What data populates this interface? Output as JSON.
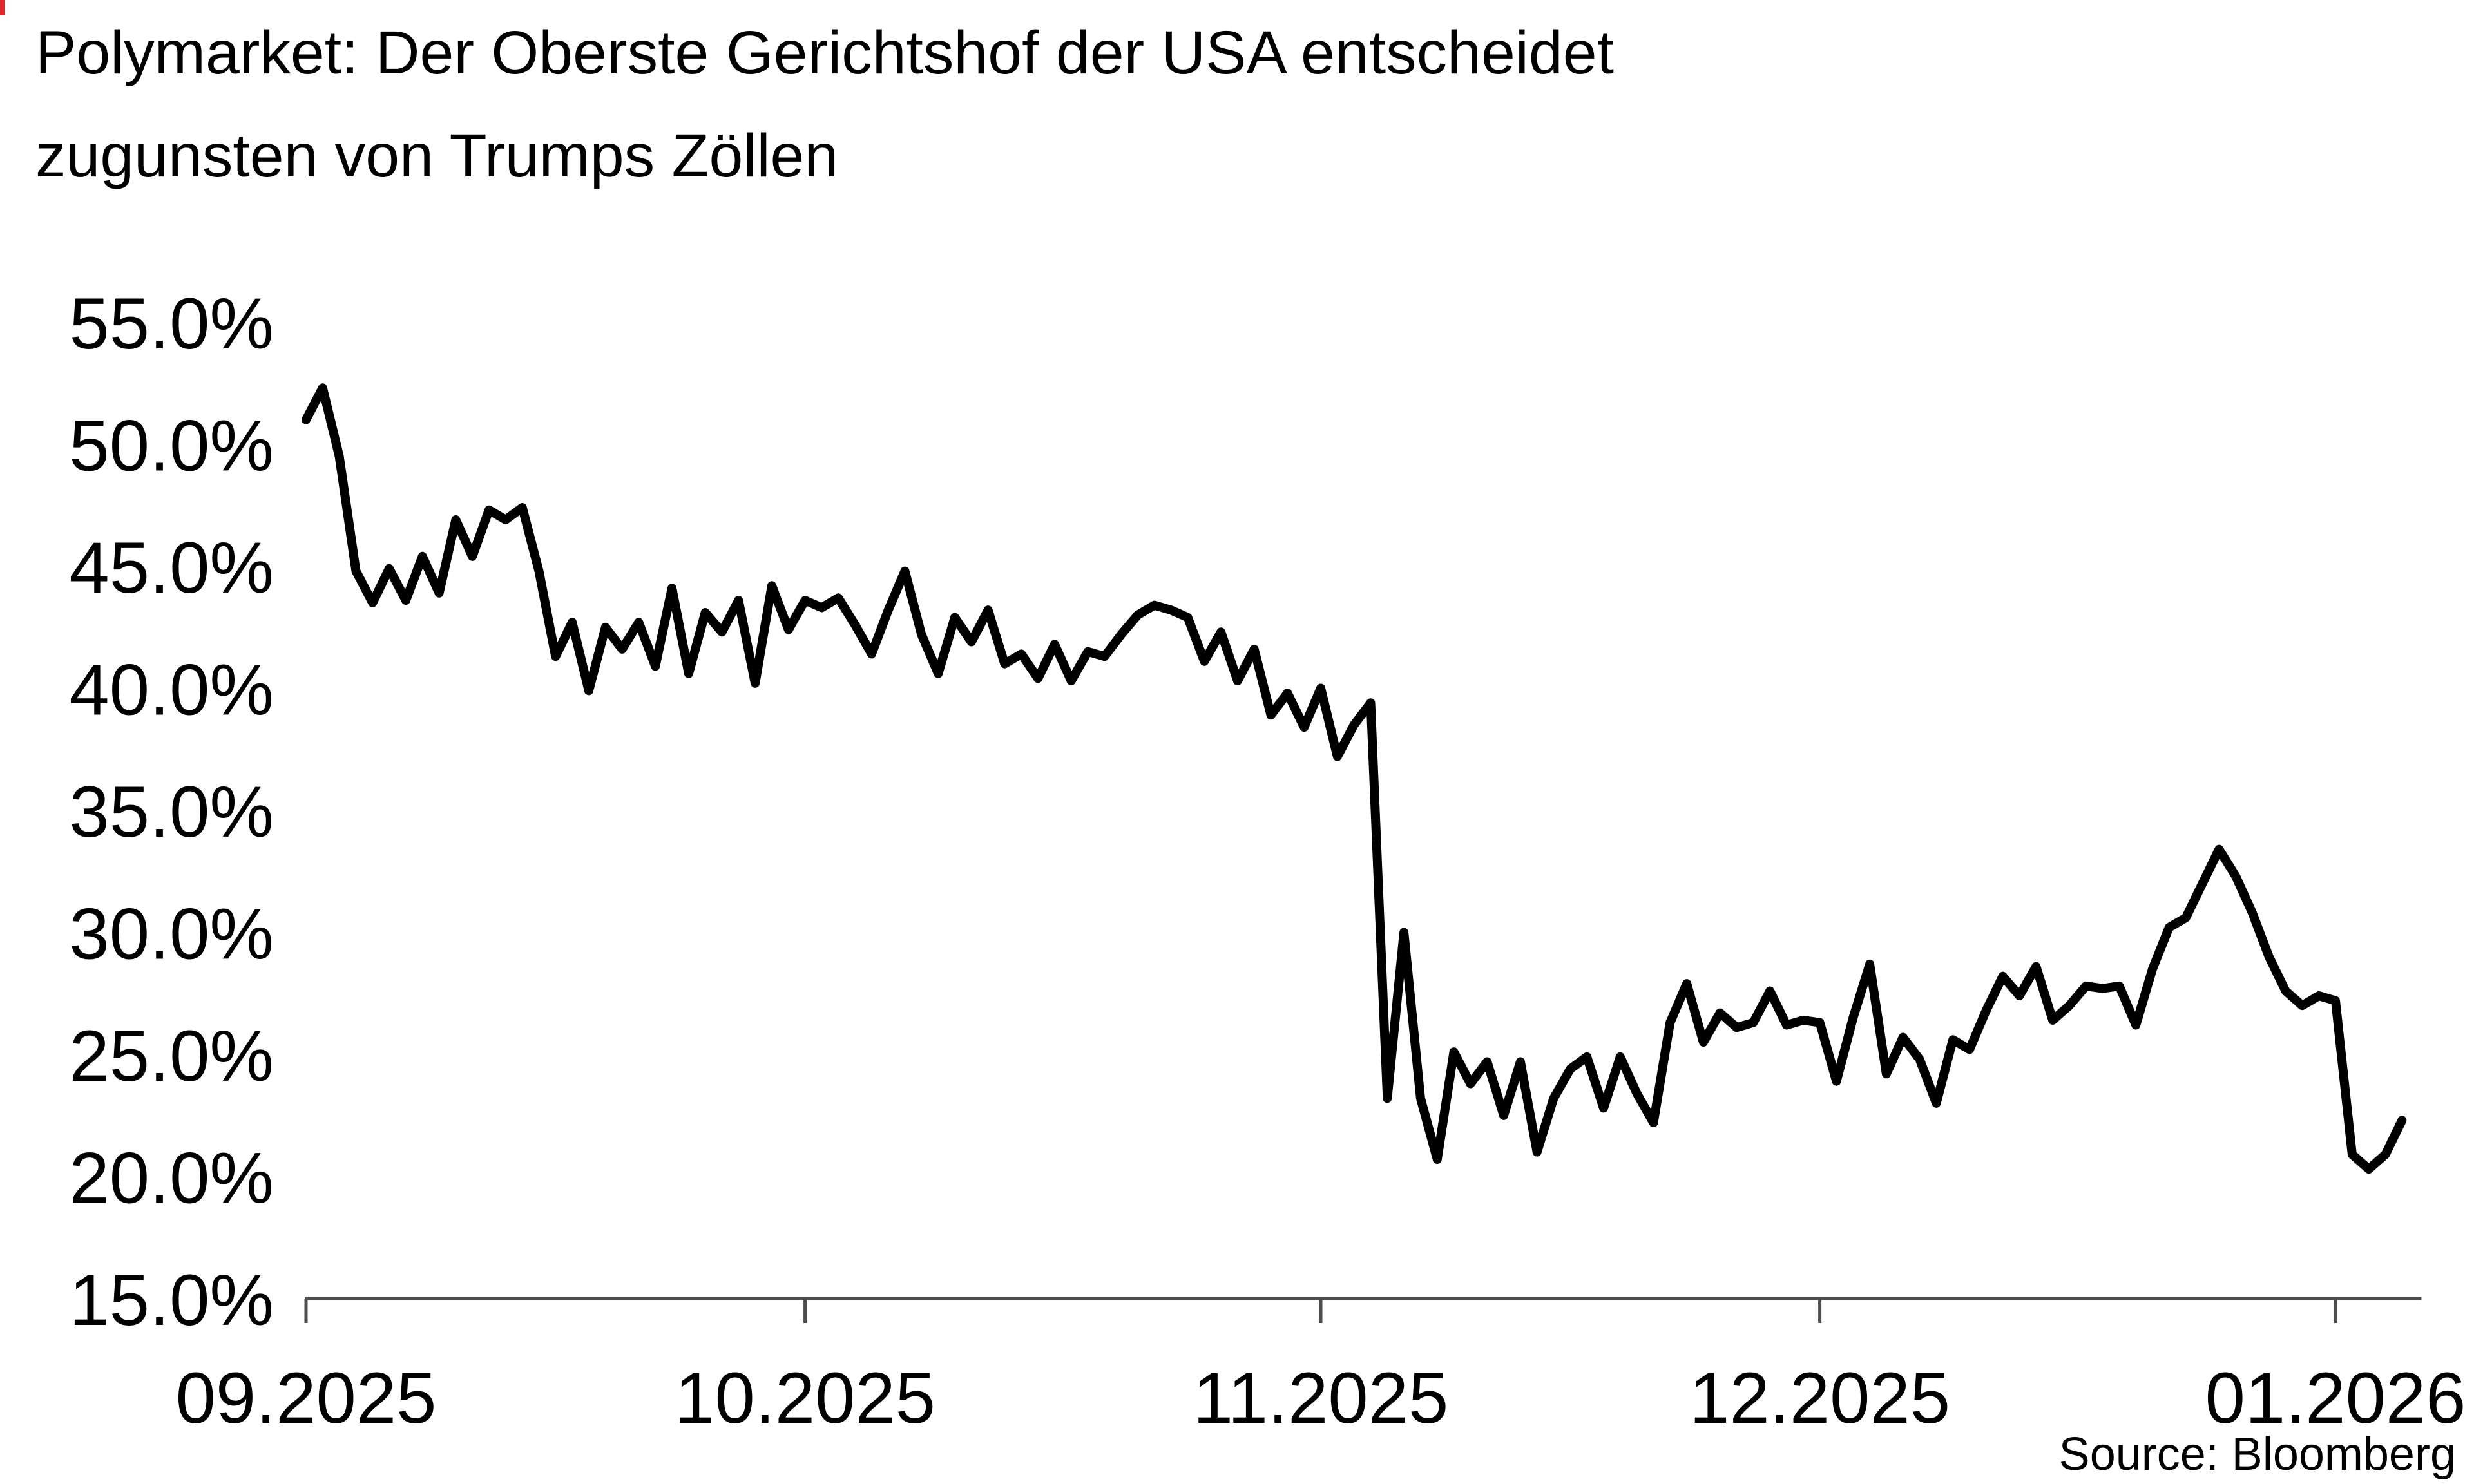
{
  "title": {
    "line1": "Polymarket: Der Oberste Gerichtshof der USA entscheidet",
    "line2": "zugunsten von Trumps Zöllen"
  },
  "source": {
    "label": "Source: Bloomberg"
  },
  "colors": {
    "background": "#ffffff",
    "line": "#000000",
    "text": "#000000",
    "axis": "#4d4d4d",
    "corner_artifact": "#df2b2e"
  },
  "y_axis": {
    "ticks": [
      {
        "label": "55.0%",
        "value": 55
      },
      {
        "label": "50.0%",
        "value": 50
      },
      {
        "label": "45.0%",
        "value": 45
      },
      {
        "label": "40.0%",
        "value": 40
      },
      {
        "label": "35.0%",
        "value": 35
      },
      {
        "label": "30.0%",
        "value": 30
      },
      {
        "label": "25.0%",
        "value": 25
      },
      {
        "label": "20.0%",
        "value": 20
      },
      {
        "label": "15.0%",
        "value": 15
      }
    ]
  },
  "x_axis": {
    "ticks": [
      {
        "label": "09.2025",
        "date": "2025-09-01"
      },
      {
        "label": "10.2025",
        "date": "2025-10-01"
      },
      {
        "label": "11.2025",
        "date": "2025-11-01"
      },
      {
        "label": "12.2025",
        "date": "2025-12-01"
      },
      {
        "label": "01.2026",
        "date": "2026-01-01"
      }
    ]
  },
  "chart_data": {
    "type": "line",
    "title": "Polymarket: Der Oberste Gerichtshof der USA entscheidet zugunsten von Trumps Zöllen",
    "xlabel": "",
    "ylabel": "",
    "ylim": [
      15,
      55
    ],
    "y_tick_step": 5,
    "x_range": [
      "2025-09-01",
      "2026-01-05"
    ],
    "grid": false,
    "legend": null,
    "source": "Bloomberg",
    "series": [
      {
        "start_date": "2025-09-01",
        "cadence": "daily",
        "unit": "percent",
        "values": [
          51.0,
          52.3,
          49.5,
          44.8,
          43.5,
          44.9,
          43.6,
          45.4,
          43.9,
          46.9,
          45.4,
          47.3,
          46.9,
          47.4,
          44.8,
          41.3,
          42.7,
          39.9,
          42.5,
          41.6,
          42.7,
          40.9,
          44.1,
          40.6,
          43.1,
          42.3,
          43.6,
          40.2,
          44.2,
          42.4,
          43.6,
          43.3,
          43.7,
          42.6,
          41.4,
          43.2,
          44.8,
          42.2,
          40.6,
          42.9,
          41.9,
          43.2,
          41.0,
          41.4,
          40.4,
          41.8,
          40.3,
          41.5,
          41.3,
          42.2,
          43.0,
          43.4,
          43.2,
          42.9,
          41.1,
          42.3,
          40.3,
          41.6,
          38.9,
          39.8,
          38.4,
          40.0,
          37.2,
          38.5,
          39.4,
          23.2,
          30.0,
          23.2,
          20.7,
          25.1,
          23.8,
          24.7,
          22.5,
          24.7,
          21.0,
          23.2,
          24.4,
          24.9,
          22.8,
          24.9,
          23.4,
          22.2,
          26.3,
          27.9,
          25.5,
          26.7,
          26.1,
          26.3,
          27.6,
          26.2,
          26.4,
          26.3,
          23.9,
          26.5,
          28.7,
          24.2,
          25.7,
          24.8,
          23.0,
          25.6,
          25.2,
          26.8,
          28.2,
          27.4,
          28.6,
          26.4,
          27.0,
          27.8,
          27.7,
          27.8,
          26.2,
          28.5,
          30.2,
          30.6,
          32.0,
          33.4,
          32.3,
          30.8,
          29.0,
          27.6,
          27.0,
          27.4,
          27.2,
          20.9,
          20.3,
          20.9,
          22.3
        ]
      }
    ]
  }
}
